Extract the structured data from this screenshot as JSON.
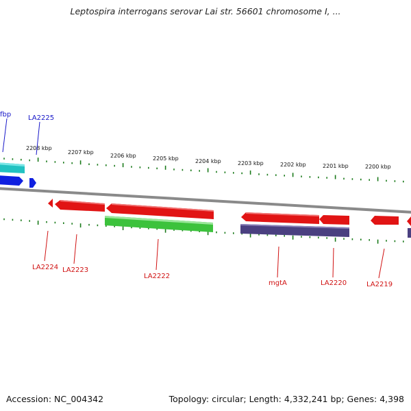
{
  "title": "Leptospira interrogans serovar Lai str. 56601 chromosome I, ...",
  "footer": {
    "accession": "Accession: NC_004342",
    "summary": "Topology: circular; Length: 4,332,241 bp; Genes: 4,398"
  },
  "colors": {
    "tick": "#1a7a1a",
    "backbone": "#8a8a8a",
    "forward_label": "#1515c8",
    "reverse_label": "#d01010",
    "cds_red": "#e11414",
    "cds_green": "#3cc23c",
    "cds_cyan": "#22c2c2",
    "cds_blue": "#1020e0",
    "cds_purple": "#4a4080"
  },
  "scale_labels": [
    "2208 kbp",
    "2207 kbp",
    "2206 kbp",
    "2205 kbp",
    "2204 kbp",
    "2203 kbp",
    "2202 kbp",
    "2201 kbp",
    "2200 kbp"
  ],
  "gene_labels": {
    "forward": [
      "fbp",
      "LA2225"
    ],
    "reverse": [
      "LA2224",
      "LA2223",
      "LA2222",
      "mgtA",
      "LA2220",
      "LA2219"
    ]
  }
}
